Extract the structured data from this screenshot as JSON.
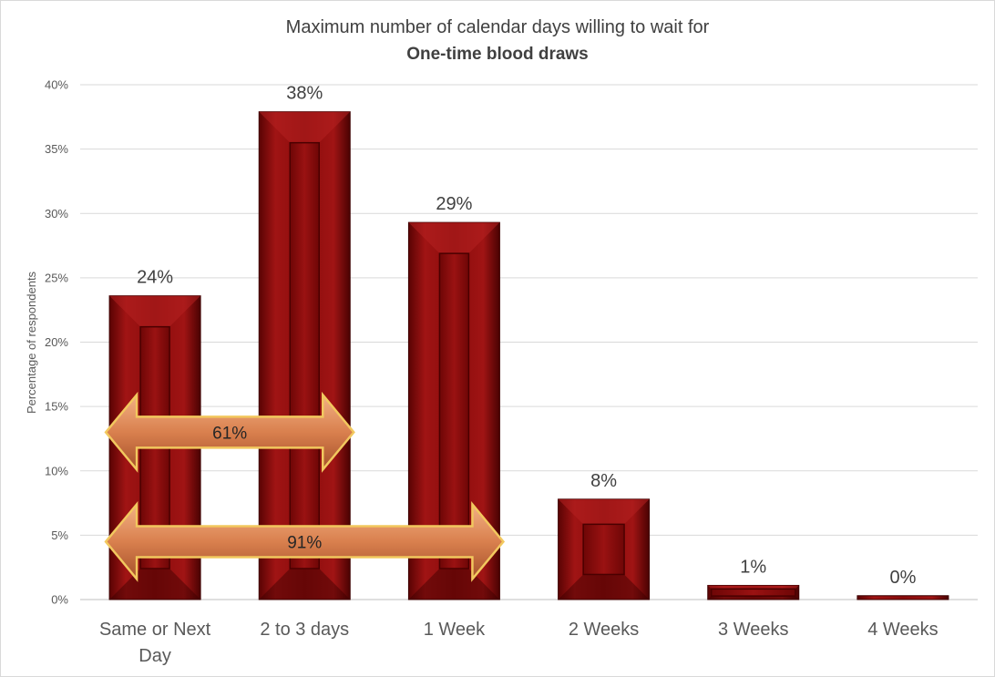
{
  "chart_data": {
    "type": "bar",
    "title": "Maximum number of calendar days willing to wait for",
    "subtitle": "One-time blood draws",
    "xlabel": "",
    "ylabel": "Percentage of respondents",
    "ylim": [
      0,
      40
    ],
    "y_ticks": [
      "0%",
      "5%",
      "10%",
      "15%",
      "20%",
      "25%",
      "30%",
      "35%",
      "40%"
    ],
    "grid": true,
    "categories": [
      "Same or Next Day",
      "2 to 3 days",
      "1 Week",
      "2 Weeks",
      "3 Weeks",
      "4 Weeks"
    ],
    "values": [
      23.6,
      37.9,
      29.3,
      7.8,
      1.1,
      0.3
    ],
    "data_labels": [
      "24%",
      "38%",
      "29%",
      "8%",
      "1%",
      "0%"
    ],
    "annotations": [
      {
        "label": "61%",
        "from_category": "Same or Next Day",
        "to_category": "2 to 3 days",
        "level": 13
      },
      {
        "label": "91%",
        "from_category": "Same or Next Day",
        "to_category": "1 Week",
        "level": 4.5
      }
    ],
    "colors": {
      "bar": "#8b0a0a",
      "arrow": "#d07a4a",
      "arrow_outline": "#f2c85e"
    }
  }
}
